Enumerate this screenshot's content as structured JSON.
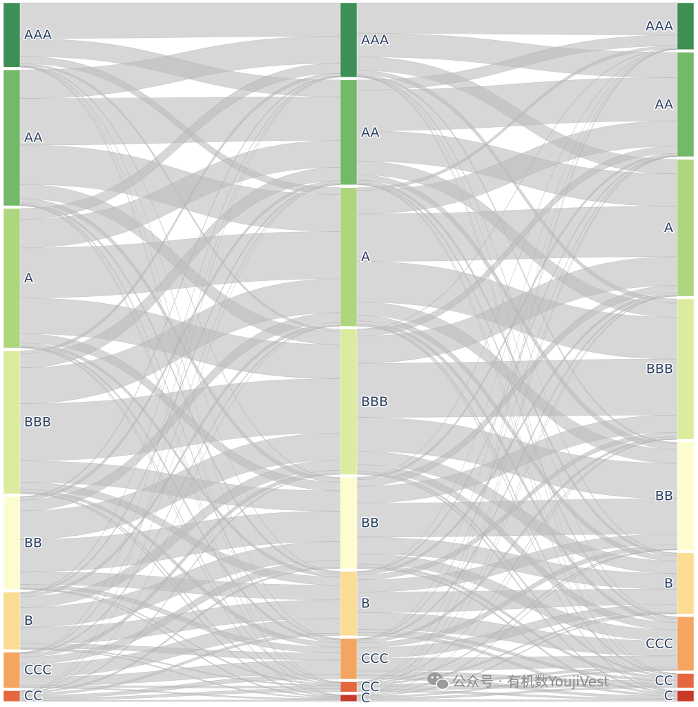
{
  "chart_data": {
    "type": "sankey",
    "columns": [
      {
        "nodes": [
          "AAA",
          "AA",
          "A",
          "BBB",
          "BB",
          "B",
          "CCC",
          "CC"
        ],
        "values": [
          9,
          19,
          19.5,
          20,
          13,
          8,
          5,
          1.5
        ]
      },
      {
        "nodes": [
          "AAA",
          "AA",
          "A",
          "BBB",
          "BB",
          "B",
          "CCC",
          "CC",
          "C"
        ],
        "values": [
          11,
          15.5,
          20.5,
          21.5,
          13.5,
          9.5,
          6,
          1.5,
          1
        ]
      },
      {
        "nodes": [
          "AAA",
          "AA",
          "A",
          "BBB",
          "BB",
          "B",
          "CCC",
          "CC",
          "C"
        ],
        "values": [
          6.5,
          14.5,
          19,
          19.5,
          15,
          8.5,
          7.5,
          2,
          1.5
        ]
      }
    ],
    "node_colors": {
      "AAA": "#3d8f55",
      "AA": "#74b869",
      "A": "#aed67e",
      "BBB": "#dcec9e",
      "BB": "#fcfcd0",
      "B": "#fbdc93",
      "CCC": "#f4a55f",
      "CC": "#e4673f",
      "C": "#c8392a"
    },
    "link_color": "#bdbdbd",
    "transitions": [
      {
        "from": "column1",
        "to": "column2",
        "matrix": [
          [
            5.0,
            2.5,
            1.0,
            0.3,
            0.1,
            0.05,
            0.03,
            0.01,
            0.01
          ],
          [
            4.0,
            6.5,
            5.5,
            2.0,
            0.6,
            0.25,
            0.1,
            0.03,
            0.02
          ],
          [
            1.5,
            4.0,
            7.0,
            5.0,
            1.3,
            0.4,
            0.2,
            0.05,
            0.05
          ],
          [
            0.4,
            2.0,
            5.0,
            8.0,
            3.0,
            1.0,
            0.4,
            0.1,
            0.1
          ],
          [
            0.1,
            0.4,
            1.5,
            4.0,
            4.5,
            1.8,
            0.5,
            0.1,
            0.1
          ],
          [
            0.05,
            0.15,
            0.4,
            1.5,
            2.8,
            2.3,
            0.6,
            0.1,
            0.1
          ],
          [
            0.02,
            0.05,
            0.1,
            0.5,
            1.0,
            1.8,
            1.2,
            0.2,
            0.13
          ],
          [
            0.01,
            0.01,
            0.02,
            0.1,
            0.2,
            0.3,
            0.4,
            0.3,
            0.16
          ]
        ]
      },
      {
        "from": "column2",
        "to": "column3",
        "matrix": [
          [
            4.5,
            3.5,
            2.0,
            0.6,
            0.2,
            0.1,
            0.05,
            0.03,
            0.02
          ],
          [
            1.5,
            6.0,
            4.5,
            2.0,
            0.8,
            0.4,
            0.2,
            0.05,
            0.05
          ],
          [
            0.4,
            3.5,
            7.0,
            6.0,
            2.0,
            0.8,
            0.5,
            0.2,
            0.1
          ],
          [
            0.05,
            1.0,
            4.0,
            8.0,
            5.0,
            2.0,
            1.0,
            0.25,
            0.2
          ],
          [
            0.03,
            0.3,
            1.0,
            2.5,
            5.0,
            2.5,
            1.5,
            0.4,
            0.27
          ],
          [
            0.01,
            0.1,
            0.3,
            0.6,
            1.5,
            2.5,
            2.0,
            0.4,
            0.39
          ],
          [
            0.01,
            0.05,
            0.15,
            0.3,
            0.6,
            1.2,
            1.5,
            0.5,
            0.44
          ],
          [
            0.01,
            0.01,
            0.02,
            0.05,
            0.1,
            0.2,
            0.3,
            0.5,
            0.31
          ],
          [
            0.01,
            0.01,
            0.01,
            0.02,
            0.05,
            0.1,
            0.2,
            0.3,
            0.3
          ]
        ]
      }
    ]
  },
  "watermark": {
    "text": "公众号 · 有机数YoujiVest",
    "icon": "wechat-icon"
  }
}
